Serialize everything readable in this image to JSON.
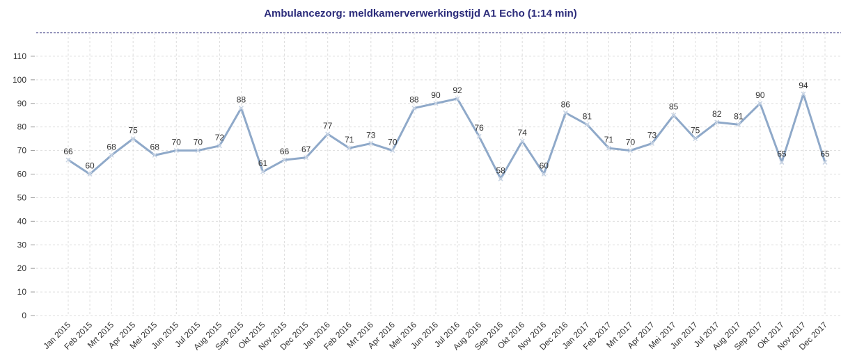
{
  "chart_data": {
    "type": "line",
    "title": "Ambulancezorg: meldkamerverwerkingstijd A1 Echo (1:14 min)",
    "categories": [
      "Jan 2015",
      "Feb 2015",
      "Mrt 2015",
      "Apr 2015",
      "Mei 2015",
      "Jun 2015",
      "Jul 2015",
      "Aug 2015",
      "Sep 2015",
      "Okt 2015",
      "Nov 2015",
      "Dec 2015",
      "Jan 2016",
      "Feb 2016",
      "Mrt 2016",
      "Apr 2016",
      "Mei 2016",
      "Jun 2016",
      "Jul 2016",
      "Aug 2016",
      "Sep 2016",
      "Okt 2016",
      "Nov 2016",
      "Dec 2016",
      "Jan 2017",
      "Feb 2017",
      "Mrt 2017",
      "Apr 2017",
      "Mei 2017",
      "Jun 2017",
      "Jul 2017",
      "Aug 2017",
      "Sep 2017",
      "Okt 2017",
      "Nov 2017",
      "Dec 2017"
    ],
    "values": [
      66,
      60,
      68,
      75,
      68,
      70,
      70,
      72,
      88,
      61,
      66,
      67,
      77,
      71,
      73,
      70,
      88,
      90,
      92,
      76,
      58,
      74,
      60,
      86,
      81,
      71,
      70,
      73,
      85,
      75,
      82,
      81,
      90,
      65,
      94,
      65
    ],
    "color": "#8fa9c9",
    "ylim": [
      0,
      120
    ],
    "yticks": [
      0,
      10,
      20,
      30,
      40,
      50,
      60,
      70,
      80,
      90,
      100,
      110
    ],
    "grid": true
  }
}
